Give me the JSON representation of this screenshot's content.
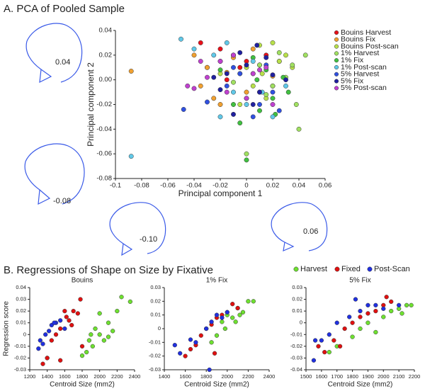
{
  "figure": {
    "panel_a_title": "A. PCA of Pooled Sample",
    "panel_b_title": "B. Regressions of Shape on Size by Fixative",
    "shape_labels": [
      "0.04",
      "-0.08",
      "-0.10",
      "0.06"
    ]
  },
  "chart_data": [
    {
      "type": "scatter",
      "xlabel": "Principal component 1",
      "ylabel": "Principal component 2",
      "xlim": [
        -0.1,
        0.06
      ],
      "xticks": [
        -0.1,
        -0.08,
        -0.06,
        -0.04,
        -0.02,
        0,
        0.02,
        0.04,
        0.06
      ],
      "ylim": [
        -0.08,
        0.04
      ],
      "yticks": [
        0.04,
        0.02,
        {
          "value": 0,
          "label": "0.00"
        },
        -0.02,
        -0.04,
        -0.06,
        -0.08
      ],
      "series": [
        {
          "name": "Bouins Harvest",
          "color": "#e8101a",
          "x": [
            -0.035,
            -0.02,
            -0.01,
            0,
            0.005,
            0.01,
            -0.005,
            0.015,
            0.02,
            -0.03,
            0.025,
            -0.015
          ],
          "values": [
            0.03,
            0.025,
            0.02,
            0.015,
            0.005,
            -0.01,
            0.01,
            0.02,
            -0.005,
            0.01,
            0.015,
            0
          ]
        },
        {
          "name": "Bouins Fix",
          "color": "#f0a030",
          "x": [
            -0.088,
            -0.04,
            -0.03,
            -0.025,
            -0.02,
            -0.01,
            0.005,
            0.01,
            -0.035,
            0.02,
            -0.015,
            0
          ],
          "values": [
            0.007,
            0.02,
            0.01,
            -0.015,
            -0.02,
            0.018,
            0.025,
            0.012,
            -0.005,
            0.003,
            0.006,
            -0.01
          ]
        },
        {
          "name": "Bouins Post-scan",
          "color": "#b8e04a",
          "x": [
            -0.01,
            0,
            0.01,
            0.02,
            0.025,
            0.03,
            0.005,
            -0.02,
            0.015,
            0.035,
            -0.005,
            0.012
          ],
          "values": [
            0.02,
            0.01,
            0.028,
            0.03,
            0.015,
            0.02,
            -0.005,
            0.005,
            -0.015,
            0.01,
            -0.02,
            0.005
          ]
        },
        {
          "name": "1% Harvest",
          "color": "#a0e060",
          "x": [
            0.045,
            0.038,
            0.04,
            0.02,
            0.01,
            -0.005,
            0.03,
            0.015,
            0.025,
            0,
            -0.01,
            0.035
          ],
          "values": [
            0.02,
            -0.02,
            -0.04,
            -0.005,
            0.012,
            0.005,
            0.002,
            -0.012,
            0.022,
            -0.06,
            -0.002,
            0.012
          ]
        },
        {
          "name": "1% Fix",
          "color": "#40c040",
          "x": [
            0.005,
            0.015,
            -0.02,
            -0.01,
            0.01,
            0.02,
            0.028,
            -0.005,
            0,
            0.022,
            0.008,
            0.032
          ],
          "values": [
            0.018,
            0.008,
            0.008,
            -0.02,
            -0.025,
            -0.015,
            0.002,
            -0.035,
            -0.065,
            -0.028,
            0,
            -0.01
          ]
        },
        {
          "name": "1% Post-scan",
          "color": "#60c8e8",
          "x": [
            -0.088,
            -0.05,
            -0.04,
            -0.02,
            -0.01,
            0,
            0.005,
            0.02,
            0.03,
            -0.025,
            0.012,
            -0.015
          ],
          "values": [
            -0.062,
            0.033,
            0.025,
            -0.03,
            -0.01,
            -0.02,
            0.015,
            -0.03,
            -0.005,
            0.02,
            -0.01,
            0.03
          ]
        },
        {
          "name": "5% Harvest",
          "color": "#3050e0",
          "x": [
            -0.048,
            -0.03,
            -0.02,
            -0.01,
            0,
            0.01,
            0.02,
            -0.005,
            0.015,
            0.025,
            0.005,
            -0.015
          ],
          "values": [
            -0.024,
            -0.018,
            0.015,
            0.01,
            -0.015,
            -0.02,
            -0.01,
            0.005,
            0.012,
            -0.025,
            -0.03,
            -0.005
          ]
        },
        {
          "name": "5% Fix",
          "color": "#2020a0",
          "x": [
            -0.015,
            0,
            0.01,
            -0.01,
            0.02,
            -0.005,
            0.005,
            0.015,
            -0.02,
            0.03,
            0.008,
            -0.025
          ],
          "values": [
            0.005,
            0.012,
            -0.01,
            -0.028,
            0.004,
            0.022,
            -0.02,
            0.018,
            -0.008,
            0,
            0.028,
            0.002
          ]
        },
        {
          "name": "5% Post-scan",
          "color": "#c040d0",
          "x": [
            -0.045,
            -0.04,
            -0.03,
            -0.02,
            -0.01,
            0,
            0.01,
            0.02,
            -0.015,
            0.005,
            -0.035,
            0.015
          ],
          "values": [
            -0.005,
            -0.007,
            0.002,
            0.015,
            0.02,
            -0.015,
            0.008,
            -0.02,
            -0.01,
            0.005,
            0.015,
            0.01
          ]
        }
      ]
    },
    {
      "type": "scatter",
      "title": "Bouins",
      "xlabel": "Centroid Size (mm2)",
      "ylabel": "Regression score",
      "xlim": [
        1200,
        2400
      ],
      "xticks": [
        1200,
        1400,
        1600,
        1800,
        2000,
        2200,
        2400
      ],
      "ylim": [
        -0.03,
        0.04
      ],
      "yticks": [
        0.04,
        0.03,
        0.02,
        0.01,
        0,
        -0.01,
        -0.02,
        -0.03
      ],
      "series": [
        {
          "name": "Harvest",
          "color": "#6ee030",
          "x": [
            1800,
            1850,
            1900,
            1920,
            1950,
            2000,
            2050,
            2100,
            2150,
            2200,
            2250,
            2350,
            1880,
            2000,
            2100
          ],
          "values": [
            -0.018,
            -0.015,
            0,
            -0.01,
            0.005,
            0,
            -0.005,
            0.01,
            0.003,
            0.02,
            0.032,
            0.028,
            -0.005,
            0.018,
            -0.002
          ]
        },
        {
          "name": "Fixed",
          "color": "#e01010",
          "x": [
            1350,
            1400,
            1450,
            1500,
            1550,
            1600,
            1620,
            1650,
            1700,
            1750,
            1780,
            1400,
            1550,
            1800,
            1680
          ],
          "values": [
            -0.025,
            -0.02,
            -0.005,
            0,
            0.005,
            0.02,
            0.015,
            0.012,
            0.02,
            0.018,
            0.03,
            -0.02,
            -0.022,
            -0.01,
            0.008
          ]
        },
        {
          "name": "Post-Scan",
          "color": "#2030e0",
          "x": [
            1300,
            1350,
            1380,
            1420,
            1450,
            1500,
            1550,
            1600,
            1320,
            1480
          ],
          "values": [
            -0.012,
            -0.008,
            0,
            0.003,
            0.008,
            0.01,
            0.012,
            0.005,
            -0.005,
            0.01
          ]
        }
      ]
    },
    {
      "type": "scatter",
      "title": "1% Fix",
      "xlabel": "Centroid Size (mm2)",
      "xlim": [
        1400,
        2400
      ],
      "xticks": [
        1400,
        1600,
        1800,
        2000,
        2200,
        2400
      ],
      "ylim": [
        -0.03,
        0.03
      ],
      "yticks": [
        0.03,
        0.02,
        0.01,
        0,
        -0.01,
        -0.02,
        -0.03
      ],
      "series": [
        {
          "color": "#6ee030",
          "x": [
            1850,
            1900,
            1950,
            2000,
            2050,
            2100,
            2150,
            2200,
            2250,
            1980,
            2080,
            2120
          ],
          "values": [
            -0.01,
            -0.005,
            0.005,
            0.01,
            0.008,
            0.015,
            0.012,
            0.02,
            0.02,
            0,
            0.005,
            0.01
          ]
        },
        {
          "color": "#e01010",
          "x": [
            1600,
            1700,
            1750,
            1800,
            1850,
            1900,
            1950,
            2000,
            2050,
            1650,
            1880,
            2100
          ],
          "values": [
            -0.02,
            -0.012,
            -0.005,
            0,
            0.003,
            0.008,
            0.01,
            0.012,
            0.018,
            -0.015,
            -0.018,
            0.015
          ]
        },
        {
          "color": "#2030e0",
          "x": [
            1500,
            1550,
            1650,
            1700,
            1800,
            1850,
            1900,
            1950,
            2000,
            1830
          ],
          "values": [
            -0.012,
            -0.018,
            -0.008,
            -0.01,
            0,
            0.005,
            0.01,
            0.008,
            0.012,
            -0.03
          ]
        }
      ]
    },
    {
      "type": "scatter",
      "title": "5% Fix",
      "xlabel": "Centroid Size (mm2)",
      "xlim": [
        1500,
        2200
      ],
      "xticks": [
        1500,
        1600,
        1700,
        1800,
        1900,
        2000,
        2100,
        2200
      ],
      "ylim": [
        -0.04,
        0.03
      ],
      "yticks": [
        0.03,
        0.02,
        0.01,
        0,
        -0.01,
        -0.02,
        -0.03,
        -0.04
      ],
      "series": [
        {
          "color": "#6ee030",
          "x": [
            1650,
            1700,
            1800,
            1850,
            1900,
            1950,
            2000,
            2050,
            2100,
            2150,
            2180,
            2120
          ],
          "values": [
            -0.025,
            -0.02,
            -0.012,
            -0.005,
            0,
            -0.008,
            0.005,
            0.01,
            0.012,
            0.015,
            0.015,
            0.008
          ]
        },
        {
          "color": "#e01010",
          "x": [
            1580,
            1620,
            1680,
            1750,
            1800,
            1850,
            1900,
            1950,
            2000,
            2020,
            2050,
            1720
          ],
          "values": [
            -0.02,
            -0.025,
            -0.015,
            -0.005,
            0,
            0.005,
            0.008,
            0.01,
            0.015,
            0.022,
            0.018,
            -0.02
          ]
        },
        {
          "color": "#2030e0",
          "x": [
            1550,
            1600,
            1650,
            1700,
            1780,
            1850,
            1900,
            1950,
            2000,
            2100,
            1560,
            1820
          ],
          "values": [
            -0.032,
            -0.015,
            -0.01,
            0,
            0.005,
            0.01,
            0.015,
            0.015,
            0.012,
            0.015,
            -0.015,
            0.02
          ]
        }
      ]
    }
  ]
}
